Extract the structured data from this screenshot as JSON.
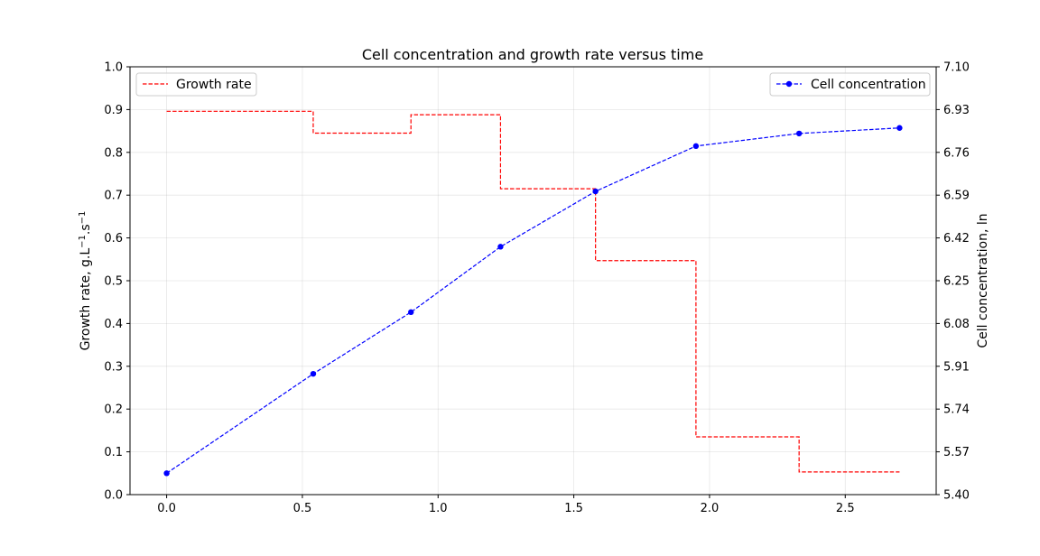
{
  "chart_data": {
    "type": "line",
    "title": "Cell concentration and growth rate versus time",
    "xlabel": "",
    "x_ticks": [
      "0.0",
      "0.5",
      "1.0",
      "1.5",
      "2.0",
      "2.5"
    ],
    "x_tick_values": [
      0.0,
      0.5,
      1.0,
      1.5,
      2.0,
      2.5
    ],
    "xlim": [
      -0.135,
      2.835
    ],
    "grid": true,
    "left_axis": {
      "label": "Growth rate, g.L",
      "label_sup1": "−1",
      "label_mid": ".s",
      "label_sup2": "−1",
      "ylim": [
        0.0,
        1.0
      ],
      "ticks": [
        "0.0",
        "0.1",
        "0.2",
        "0.3",
        "0.4",
        "0.5",
        "0.6",
        "0.7",
        "0.8",
        "0.9",
        "1.0"
      ],
      "tick_values": [
        0.0,
        0.1,
        0.2,
        0.3,
        0.4,
        0.5,
        0.6,
        0.7,
        0.8,
        0.9,
        1.0
      ]
    },
    "right_axis": {
      "label": "Cell concentration, ln",
      "ylim": [
        5.4,
        7.1
      ],
      "ticks": [
        "5.40",
        "5.57",
        "5.74",
        "5.91",
        "6.08",
        "6.25",
        "6.42",
        "6.59",
        "6.76",
        "6.93",
        "7.10"
      ],
      "tick_values": [
        5.4,
        5.57,
        5.74,
        5.91,
        6.08,
        6.25,
        6.42,
        6.59,
        6.76,
        6.93,
        7.1
      ]
    },
    "series": [
      {
        "name": "Growth rate",
        "axis": "left",
        "style": "step-dashed",
        "color": "#ff0000",
        "segments": [
          {
            "x0": 0.0,
            "x1": 0.54,
            "y": 0.896
          },
          {
            "x0": 0.54,
            "x1": 0.9,
            "y": 0.845
          },
          {
            "x0": 0.9,
            "x1": 1.23,
            "y": 0.888
          },
          {
            "x0": 1.23,
            "x1": 1.58,
            "y": 0.715
          },
          {
            "x0": 1.58,
            "x1": 1.95,
            "y": 0.547
          },
          {
            "x0": 1.95,
            "x1": 2.33,
            "y": 0.135
          },
          {
            "x0": 2.33,
            "x1": 2.7,
            "y": 0.053
          }
        ]
      },
      {
        "name": "Cell concentration",
        "axis": "right",
        "style": "dashed-markers",
        "color": "#0000ff",
        "x": [
          0.0,
          0.54,
          0.9,
          1.23,
          1.58,
          1.95,
          2.33,
          2.7
        ],
        "y": [
          5.485,
          5.88,
          6.125,
          6.385,
          6.605,
          6.785,
          6.835,
          6.857
        ]
      }
    ],
    "legends": [
      {
        "placement": "upper-left",
        "entries": [
          "Growth rate"
        ]
      },
      {
        "placement": "upper-right",
        "entries": [
          "Cell concentration"
        ]
      }
    ]
  }
}
